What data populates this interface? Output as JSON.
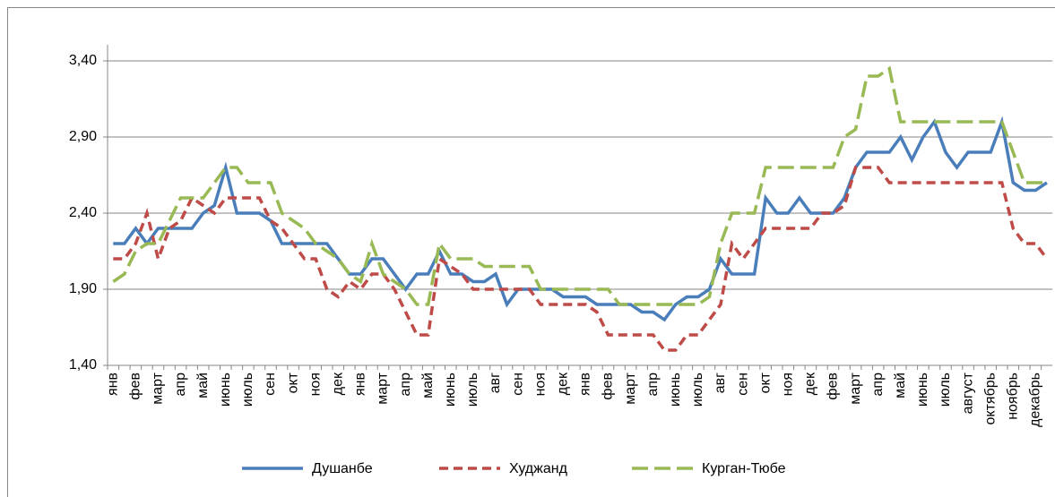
{
  "chart_data": {
    "type": "line",
    "categories": [
      "янв",
      null,
      "фев",
      null,
      "март",
      null,
      "апр",
      null,
      "май",
      null,
      "июнь",
      null,
      "июль",
      null,
      "сен",
      null,
      "окт",
      null,
      "ноя",
      null,
      "дек",
      null,
      "янв",
      null,
      "март",
      null,
      "апр",
      null,
      "май",
      null,
      "июнь",
      null,
      "июль",
      null,
      "авг",
      null,
      "сен",
      null,
      "ноя",
      null,
      "дек",
      null,
      "янв",
      null,
      "фев",
      null,
      "март",
      null,
      "апр",
      null,
      "июнь",
      null,
      "июль",
      null,
      "авг",
      null,
      "сен",
      null,
      "окт",
      null,
      "ноя",
      null,
      "дек",
      null,
      "фев",
      null,
      "март",
      null,
      "апр",
      null,
      "май",
      null,
      "июнь",
      null,
      "июль",
      null,
      "август",
      null,
      "октябрь",
      null,
      "ноябрь",
      null,
      "декабрь",
      null
    ],
    "series": [
      {
        "name": "Душанбе",
        "color": "#4a7ebb",
        "dash": "solid",
        "values": [
          2.2,
          2.2,
          2.3,
          2.2,
          2.3,
          2.3,
          2.3,
          2.3,
          2.4,
          2.45,
          2.7,
          2.4,
          2.4,
          2.4,
          2.35,
          2.2,
          2.2,
          2.2,
          2.2,
          2.2,
          2.1,
          2.0,
          2.0,
          2.1,
          2.1,
          2.0,
          1.9,
          2.0,
          2.0,
          2.15,
          2.0,
          2.0,
          1.95,
          1.95,
          2.0,
          1.8,
          1.9,
          1.9,
          1.9,
          1.9,
          1.85,
          1.85,
          1.85,
          1.8,
          1.8,
          1.8,
          1.8,
          1.75,
          1.75,
          1.7,
          1.8,
          1.85,
          1.85,
          1.9,
          2.1,
          2.0,
          2.0,
          2.0,
          2.5,
          2.4,
          2.4,
          2.5,
          2.4,
          2.4,
          2.4,
          2.5,
          2.7,
          2.8,
          2.8,
          2.8,
          2.9,
          2.75,
          2.9,
          3.0,
          2.8,
          2.7,
          2.8,
          2.8,
          2.8,
          3.0,
          2.6,
          2.55,
          2.55,
          2.6
        ]
      },
      {
        "name": "Худжанд",
        "color": "#be4b48",
        "dash": "short",
        "values": [
          2.1,
          2.1,
          2.2,
          2.4,
          2.1,
          2.3,
          2.35,
          2.5,
          2.45,
          2.4,
          2.5,
          2.5,
          2.5,
          2.5,
          2.35,
          2.3,
          2.2,
          2.1,
          2.1,
          1.9,
          1.85,
          1.95,
          1.9,
          2.0,
          2.0,
          1.9,
          1.75,
          1.6,
          1.6,
          2.1,
          2.05,
          2.0,
          1.9,
          1.9,
          1.9,
          1.9,
          1.9,
          1.9,
          1.8,
          1.8,
          1.8,
          1.8,
          1.8,
          1.75,
          1.6,
          1.6,
          1.6,
          1.6,
          1.6,
          1.5,
          1.5,
          1.6,
          1.6,
          1.7,
          1.8,
          2.2,
          2.1,
          2.2,
          2.3,
          2.3,
          2.3,
          2.3,
          2.3,
          2.4,
          2.4,
          2.45,
          2.7,
          2.7,
          2.7,
          2.6,
          2.6,
          2.6,
          2.6,
          2.6,
          2.6,
          2.6,
          2.6,
          2.6,
          2.6,
          2.6,
          2.3,
          2.2,
          2.2,
          2.1
        ]
      },
      {
        "name": "Курган-Тюбе",
        "color": "#98b954",
        "dash": "long",
        "values": [
          1.95,
          2.0,
          2.15,
          2.2,
          2.2,
          2.35,
          2.5,
          2.5,
          2.5,
          2.6,
          2.7,
          2.7,
          2.6,
          2.6,
          2.6,
          2.4,
          2.35,
          2.3,
          2.2,
          2.15,
          2.1,
          2.0,
          1.95,
          2.2,
          2.0,
          1.95,
          1.9,
          1.8,
          1.8,
          2.2,
          2.1,
          2.1,
          2.1,
          2.05,
          2.05,
          2.05,
          2.05,
          2.05,
          1.9,
          1.9,
          1.9,
          1.9,
          1.9,
          1.9,
          1.9,
          1.8,
          1.8,
          1.8,
          1.8,
          1.8,
          1.8,
          1.8,
          1.8,
          1.85,
          2.2,
          2.4,
          2.4,
          2.4,
          2.7,
          2.7,
          2.7,
          2.7,
          2.7,
          2.7,
          2.7,
          2.9,
          2.95,
          3.3,
          3.3,
          3.35,
          3.0,
          3.0,
          3.0,
          3.0,
          3.0,
          3.0,
          3.0,
          3.0,
          3.0,
          3.0,
          2.8,
          2.6,
          2.6,
          2.6
        ]
      }
    ],
    "ylim": [
      1.4,
      3.4
    ],
    "yticks": [
      {
        "value": 1.4,
        "label": "1,40"
      },
      {
        "value": 1.9,
        "label": "1,90"
      },
      {
        "value": 2.4,
        "label": "2,40"
      },
      {
        "value": 2.9,
        "label": "2,90"
      },
      {
        "value": 3.4,
        "label": "3,40"
      }
    ],
    "grid": true,
    "legend": "bottom"
  }
}
